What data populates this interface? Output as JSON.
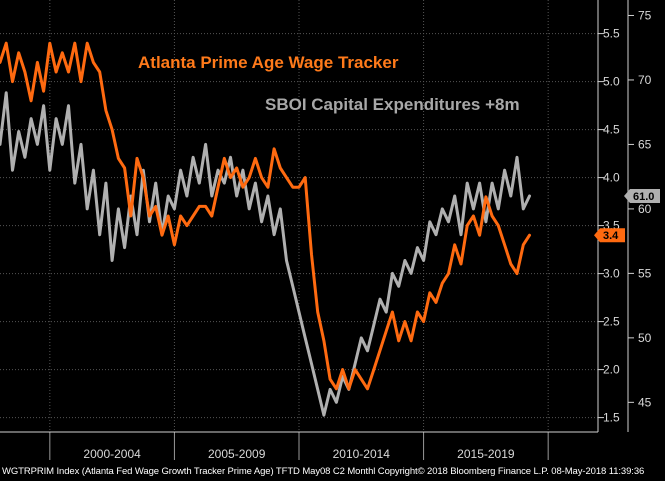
{
  "footer": "WGTRPRIM Index (Atlanta Fed Wage Growth Tracker Prime Age) TFTD May08 C2  Monthl  Copyright© 2018 Bloomberg Finance L.P.   08-May-2018 11:39:36",
  "colors": {
    "background": "#000000",
    "wage_series": "#ff6a10",
    "capex_series": "#b0b0b0",
    "grid": "#555555",
    "axis_text": "#d8d8d8"
  },
  "chart_data": {
    "type": "line",
    "annotations": [
      {
        "text": "Atlanta Prime Age Wage Tracker",
        "color": "#ff7a1a"
      },
      {
        "text": "SBOI Capital Expenditures +8m",
        "color": "#a8a8a8"
      }
    ],
    "x_axis": {
      "range": [
        1997,
        2021
      ],
      "period_labels": [
        {
          "label": "2000-2004",
          "start": 1999,
          "end": 2004
        },
        {
          "label": "2005-2009",
          "start": 2004,
          "end": 2009
        },
        {
          "label": "2010-2014",
          "start": 2009,
          "end": 2014
        },
        {
          "label": "2015-2019",
          "start": 2014,
          "end": 2019
        }
      ],
      "separators": [
        1999,
        2004,
        2009,
        2014,
        2019
      ]
    },
    "y_left": {
      "ticks": [
        1.5,
        2.0,
        2.5,
        3.0,
        3.5,
        4.0,
        4.5,
        5.0,
        5.5
      ],
      "range": [
        1.35,
        5.85
      ]
    },
    "y_right": {
      "ticks": [
        45,
        50,
        55,
        60,
        65,
        70,
        75
      ],
      "range": [
        42.7,
        76.2
      ]
    },
    "last_value_tags": [
      {
        "text": "3.4",
        "axis": "left",
        "value": 3.4,
        "series": "wage"
      },
      {
        "text": "61.0",
        "axis": "right",
        "value": 61.0,
        "series": "capex"
      }
    ],
    "series": [
      {
        "id": "wage",
        "axis": "left",
        "points": [
          [
            1997.0,
            5.2
          ],
          [
            1997.25,
            5.4
          ],
          [
            1997.5,
            5.0
          ],
          [
            1997.75,
            5.3
          ],
          [
            1998.0,
            5.1
          ],
          [
            1998.25,
            4.8
          ],
          [
            1998.5,
            5.2
          ],
          [
            1998.75,
            4.9
          ],
          [
            1999.0,
            5.4
          ],
          [
            1999.25,
            5.1
          ],
          [
            1999.5,
            5.3
          ],
          [
            1999.75,
            5.1
          ],
          [
            2000.0,
            5.4
          ],
          [
            2000.25,
            5.0
          ],
          [
            2000.5,
            5.4
          ],
          [
            2000.75,
            5.2
          ],
          [
            2001.0,
            5.1
          ],
          [
            2001.25,
            4.7
          ],
          [
            2001.5,
            4.5
          ],
          [
            2001.75,
            4.2
          ],
          [
            2002.0,
            4.1
          ],
          [
            2002.25,
            3.6
          ],
          [
            2002.5,
            4.2
          ],
          [
            2002.75,
            4.0
          ],
          [
            2003.0,
            3.6
          ],
          [
            2003.25,
            3.7
          ],
          [
            2003.5,
            3.4
          ],
          [
            2003.75,
            3.6
          ],
          [
            2004.0,
            3.3
          ],
          [
            2004.25,
            3.6
          ],
          [
            2004.5,
            3.5
          ],
          [
            2004.75,
            3.6
          ],
          [
            2005.0,
            3.7
          ],
          [
            2005.25,
            3.7
          ],
          [
            2005.5,
            3.6
          ],
          [
            2005.75,
            3.9
          ],
          [
            2006.0,
            4.2
          ],
          [
            2006.25,
            4.0
          ],
          [
            2006.5,
            4.1
          ],
          [
            2006.75,
            3.9
          ],
          [
            2007.0,
            4.0
          ],
          [
            2007.25,
            4.2
          ],
          [
            2007.5,
            4.0
          ],
          [
            2007.75,
            3.9
          ],
          [
            2008.0,
            4.3
          ],
          [
            2008.25,
            4.1
          ],
          [
            2008.5,
            4.0
          ],
          [
            2008.75,
            3.9
          ],
          [
            2009.0,
            3.9
          ],
          [
            2009.25,
            4.0
          ],
          [
            2009.5,
            3.2
          ],
          [
            2009.75,
            2.6
          ],
          [
            2010.0,
            2.3
          ],
          [
            2010.25,
            1.9
          ],
          [
            2010.5,
            1.8
          ],
          [
            2010.75,
            2.0
          ],
          [
            2011.0,
            1.8
          ],
          [
            2011.25,
            2.0
          ],
          [
            2011.5,
            1.9
          ],
          [
            2011.75,
            1.8
          ],
          [
            2012.0,
            2.0
          ],
          [
            2012.25,
            2.2
          ],
          [
            2012.5,
            2.4
          ],
          [
            2012.75,
            2.6
          ],
          [
            2013.0,
            2.3
          ],
          [
            2013.25,
            2.5
          ],
          [
            2013.5,
            2.3
          ],
          [
            2013.75,
            2.6
          ],
          [
            2014.0,
            2.5
          ],
          [
            2014.25,
            2.8
          ],
          [
            2014.5,
            2.7
          ],
          [
            2014.75,
            2.9
          ],
          [
            2015.0,
            3.0
          ],
          [
            2015.25,
            3.3
          ],
          [
            2015.5,
            3.1
          ],
          [
            2015.75,
            3.5
          ],
          [
            2016.0,
            3.6
          ],
          [
            2016.25,
            3.4
          ],
          [
            2016.5,
            3.8
          ],
          [
            2016.75,
            3.6
          ],
          [
            2017.0,
            3.5
          ],
          [
            2017.25,
            3.3
          ],
          [
            2017.5,
            3.1
          ],
          [
            2017.75,
            3.0
          ],
          [
            2018.0,
            3.3
          ],
          [
            2018.25,
            3.4
          ]
        ]
      },
      {
        "id": "capex",
        "axis": "right",
        "points": [
          [
            1997.0,
            65
          ],
          [
            1997.25,
            69
          ],
          [
            1997.5,
            63
          ],
          [
            1997.75,
            66
          ],
          [
            1998.0,
            64
          ],
          [
            1998.25,
            67
          ],
          [
            1998.5,
            65
          ],
          [
            1998.75,
            68
          ],
          [
            1999.0,
            63
          ],
          [
            1999.25,
            67
          ],
          [
            1999.5,
            65
          ],
          [
            1999.75,
            68
          ],
          [
            2000.0,
            62
          ],
          [
            2000.25,
            65
          ],
          [
            2000.5,
            60
          ],
          [
            2000.75,
            63
          ],
          [
            2001.0,
            58
          ],
          [
            2001.25,
            62
          ],
          [
            2001.5,
            56
          ],
          [
            2001.75,
            60
          ],
          [
            2002.0,
            57
          ],
          [
            2002.25,
            61
          ],
          [
            2002.5,
            58
          ],
          [
            2002.75,
            63
          ],
          [
            2003.0,
            59
          ],
          [
            2003.25,
            62
          ],
          [
            2003.5,
            58
          ],
          [
            2003.75,
            61
          ],
          [
            2004.0,
            60
          ],
          [
            2004.25,
            63
          ],
          [
            2004.5,
            61
          ],
          [
            2004.75,
            64
          ],
          [
            2005.0,
            62
          ],
          [
            2005.25,
            65
          ],
          [
            2005.5,
            61
          ],
          [
            2005.75,
            63
          ],
          [
            2006.0,
            62
          ],
          [
            2006.25,
            64
          ],
          [
            2006.5,
            61
          ],
          [
            2006.75,
            63
          ],
          [
            2007.0,
            60
          ],
          [
            2007.25,
            62
          ],
          [
            2007.5,
            59
          ],
          [
            2007.75,
            61
          ],
          [
            2008.0,
            58
          ],
          [
            2008.25,
            60
          ],
          [
            2008.5,
            56
          ],
          [
            2008.75,
            54
          ],
          [
            2009.0,
            52
          ],
          [
            2009.25,
            50
          ],
          [
            2009.5,
            48
          ],
          [
            2009.75,
            46
          ],
          [
            2010.0,
            44
          ],
          [
            2010.25,
            46
          ],
          [
            2010.5,
            45
          ],
          [
            2010.75,
            47
          ],
          [
            2011.0,
            46
          ],
          [
            2011.25,
            48
          ],
          [
            2011.5,
            50
          ],
          [
            2011.75,
            49
          ],
          [
            2012.0,
            51
          ],
          [
            2012.25,
            53
          ],
          [
            2012.5,
            52
          ],
          [
            2012.75,
            55
          ],
          [
            2013.0,
            54
          ],
          [
            2013.25,
            56
          ],
          [
            2013.5,
            55
          ],
          [
            2013.75,
            57
          ],
          [
            2014.0,
            56
          ],
          [
            2014.25,
            59
          ],
          [
            2014.5,
            58
          ],
          [
            2014.75,
            60
          ],
          [
            2015.0,
            59
          ],
          [
            2015.25,
            61
          ],
          [
            2015.5,
            58
          ],
          [
            2015.75,
            62
          ],
          [
            2016.0,
            60
          ],
          [
            2016.25,
            62
          ],
          [
            2016.5,
            59
          ],
          [
            2016.75,
            62
          ],
          [
            2017.0,
            60
          ],
          [
            2017.25,
            63
          ],
          [
            2017.5,
            61
          ],
          [
            2017.75,
            64
          ],
          [
            2018.0,
            60
          ],
          [
            2018.25,
            61
          ]
        ]
      }
    ]
  }
}
